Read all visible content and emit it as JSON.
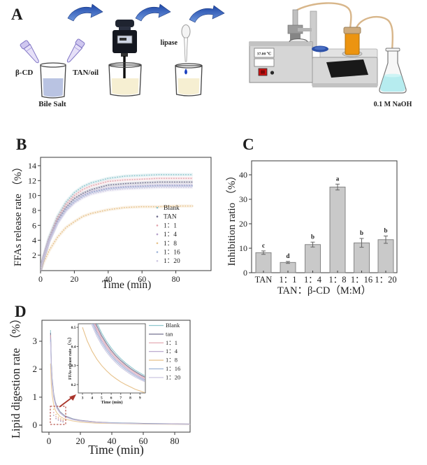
{
  "figure": {
    "panel_a": {
      "label": "A",
      "labels": {
        "beta_cd": "β-CD",
        "tan_oil": "TAN/oil",
        "bile_salt": "Bile Salt",
        "lipase": "lipase",
        "temperature": "37.00 ℃",
        "naoh": "0.1 M NaOH"
      }
    },
    "panel_b": {
      "label": "B"
    },
    "panel_c": {
      "label": "C"
    },
    "panel_d": {
      "label": "D"
    }
  },
  "palette": {
    "blank": "#8ec6cd",
    "tan_series": "#73718f",
    "r1_1": "#e2a3ab",
    "r1_4": "#b5a0ca",
    "r1_8": "#e7c28b",
    "r1_16": "#9db3d7",
    "r1_20": "#cdc7e2",
    "bar_fill": "#c9c9c9",
    "bar_stroke": "#7d7d7d",
    "axis": "#3a3a3a",
    "accent_red": "#a9352b",
    "display_red": "#d01010",
    "arrow_blue_dark": "#1d47a8",
    "arrow_blue_light": "#6f97dd"
  },
  "chart_data": [
    {
      "id": "panel_b",
      "type": "line",
      "line_style": "dotted-with-band",
      "xlabel": "Time (min)",
      "ylabel": "FFAs release rate （%）",
      "xlim": [
        0,
        100
      ],
      "ylim": [
        0,
        15.2
      ],
      "xticks": [
        0,
        20,
        40,
        60,
        80
      ],
      "yticks": [
        2,
        4,
        6,
        8,
        10,
        12,
        14
      ],
      "legend_position": "lower right",
      "x": [
        0,
        2,
        5,
        10,
        15,
        20,
        25,
        30,
        40,
        50,
        60,
        70,
        80,
        90
      ],
      "series": [
        {
          "name": "Blank",
          "color": "#8ec6cd",
          "values": [
            0,
            2.0,
            4.4,
            7.2,
            9.1,
            10.4,
            11.2,
            11.7,
            12.3,
            12.6,
            12.7,
            12.8,
            12.8,
            12.8
          ]
        },
        {
          "name": "TAN",
          "color": "#73718f",
          "values": [
            0,
            1.8,
            4.0,
            6.7,
            8.4,
            9.6,
            10.3,
            10.8,
            11.4,
            11.6,
            11.7,
            11.8,
            11.8,
            11.8
          ]
        },
        {
          "name": "1：1",
          "color": "#e2a3ab",
          "values": [
            0,
            1.9,
            4.2,
            7.0,
            8.8,
            10.0,
            10.8,
            11.3,
            11.9,
            12.1,
            12.2,
            12.3,
            12.3,
            12.3
          ]
        },
        {
          "name": "1：4",
          "color": "#b5a0ca",
          "values": [
            0,
            1.8,
            3.9,
            6.4,
            8.1,
            9.2,
            10.0,
            10.5,
            11.0,
            11.2,
            11.3,
            11.4,
            11.4,
            11.4
          ]
        },
        {
          "name": "1：8",
          "color": "#e7c28b",
          "values": [
            0,
            1.1,
            2.6,
            4.4,
            5.7,
            6.5,
            7.2,
            7.6,
            8.1,
            8.4,
            8.5,
            8.5,
            8.6,
            8.6
          ]
        },
        {
          "name": "1：16",
          "color": "#9db3d7",
          "values": [
            0,
            1.7,
            3.9,
            6.4,
            8.1,
            9.2,
            9.9,
            10.4,
            10.9,
            11.1,
            11.2,
            11.3,
            11.3,
            11.3
          ]
        },
        {
          "name": "1：20",
          "color": "#cdc7e2",
          "values": [
            0,
            1.7,
            3.8,
            6.3,
            7.9,
            9.0,
            9.7,
            10.2,
            10.7,
            10.9,
            11.0,
            11.1,
            11.1,
            11.1
          ]
        }
      ]
    },
    {
      "id": "panel_c",
      "type": "bar",
      "xlabel": "TAN：β-CD（M:M）",
      "ylabel": "Inhibition ratio （%）",
      "ylim": [
        0,
        45
      ],
      "yticks": [
        0,
        10,
        20,
        30,
        40
      ],
      "categories": [
        "TAN",
        "1：1",
        "1：4",
        "1：8",
        "1：16",
        "1：20"
      ],
      "values": [
        8.2,
        4.2,
        11.5,
        35.0,
        12.2,
        13.5
      ],
      "errors": [
        0.7,
        0.4,
        1.0,
        1.2,
        1.8,
        1.5
      ],
      "sig_letters": [
        "c",
        "d",
        "b",
        "a",
        "b",
        "b"
      ],
      "bar_color": "#c9c9c9"
    },
    {
      "id": "panel_d_main",
      "type": "line",
      "line_style": "solid",
      "xlabel": "Time (min)",
      "ylabel": "Lipid digestion rate （%）",
      "xlim": [
        0,
        94
      ],
      "ylim": [
        -0.25,
        3.75
      ],
      "xticks": [
        0,
        20,
        40,
        60,
        80
      ],
      "yticks": [
        0,
        1,
        2,
        3
      ],
      "x": [
        1,
        1.5,
        2,
        3,
        4,
        5,
        7,
        10,
        15,
        20,
        30,
        40,
        60,
        90
      ],
      "series": [
        {
          "name": "Blank",
          "color": "#8ec6cd",
          "values": [
            3.4,
            2.27,
            1.7,
            1.13,
            0.85,
            0.68,
            0.49,
            0.34,
            0.23,
            0.17,
            0.11,
            0.09,
            0.06,
            0.04
          ]
        },
        {
          "name": "tan",
          "color": "#73718f",
          "values": [
            3.3,
            2.2,
            1.65,
            1.1,
            0.83,
            0.66,
            0.47,
            0.33,
            0.22,
            0.17,
            0.11,
            0.08,
            0.06,
            0.04
          ]
        },
        {
          "name": "1：1",
          "color": "#e2a3ab",
          "values": [
            3.22,
            2.15,
            1.61,
            1.07,
            0.81,
            0.64,
            0.46,
            0.32,
            0.21,
            0.16,
            0.11,
            0.08,
            0.05,
            0.04
          ]
        },
        {
          "name": "1：4",
          "color": "#b5a0ca",
          "values": [
            3.14,
            2.09,
            1.57,
            1.05,
            0.79,
            0.63,
            0.45,
            0.31,
            0.21,
            0.16,
            0.1,
            0.08,
            0.05,
            0.03
          ]
        },
        {
          "name": "1：8",
          "color": "#e7c28b",
          "values": [
            2.2,
            1.47,
            1.1,
            0.73,
            0.55,
            0.44,
            0.31,
            0.22,
            0.15,
            0.11,
            0.07,
            0.06,
            0.04,
            0.02
          ]
        },
        {
          "name": "1：16",
          "color": "#9db3d7",
          "values": [
            3.06,
            2.04,
            1.53,
            1.02,
            0.77,
            0.61,
            0.44,
            0.31,
            0.2,
            0.15,
            0.1,
            0.08,
            0.05,
            0.03
          ]
        },
        {
          "name": "1：20",
          "color": "#cdc7e2",
          "values": [
            2.98,
            1.99,
            1.49,
            0.99,
            0.75,
            0.6,
            0.43,
            0.3,
            0.2,
            0.15,
            0.1,
            0.07,
            0.05,
            0.03
          ]
        }
      ]
    },
    {
      "id": "panel_d_inset",
      "type": "line",
      "line_style": "solid",
      "xlabel": "Time (min)",
      "ylabel": "FFAs release rate （%）",
      "xlim": [
        2.5,
        9.6
      ],
      "ylim": [
        0.15,
        0.52
      ],
      "xticks": [
        3,
        4,
        5,
        6,
        7,
        8,
        9
      ],
      "yticks": [
        0.2,
        0.3,
        0.4,
        0.5
      ],
      "legend_position": "right of inset",
      "x": [
        3,
        3.5,
        4,
        4.5,
        5,
        5.5,
        6,
        6.5,
        7,
        7.5,
        8,
        8.5,
        9,
        9.5
      ],
      "series": [
        {
          "name": "Blank",
          "color": "#8ec6cd",
          "values": [
            0.783,
            0.671,
            0.588,
            0.522,
            0.47,
            0.427,
            0.392,
            0.362,
            0.336,
            0.313,
            0.294,
            0.276,
            0.261,
            0.247
          ]
        },
        {
          "name": "tan",
          "color": "#73718f",
          "values": [
            0.76,
            0.651,
            0.57,
            0.507,
            0.456,
            0.415,
            0.38,
            0.351,
            0.326,
            0.304,
            0.285,
            0.268,
            0.253,
            0.24
          ]
        },
        {
          "name": "1：1",
          "color": "#e2a3ab",
          "values": [
            0.74,
            0.634,
            0.555,
            0.493,
            0.444,
            0.404,
            0.37,
            0.342,
            0.317,
            0.296,
            0.278,
            0.261,
            0.247,
            0.234
          ]
        },
        {
          "name": "1：4",
          "color": "#b5a0ca",
          "values": [
            0.72,
            0.617,
            0.54,
            0.48,
            0.432,
            0.393,
            0.36,
            0.332,
            0.309,
            0.288,
            0.27,
            0.254,
            0.24,
            0.227
          ]
        },
        {
          "name": "1：8",
          "color": "#e7c28b",
          "values": [
            0.5,
            0.429,
            0.375,
            0.333,
            0.3,
            0.273,
            0.25,
            0.231,
            0.214,
            0.2,
            0.188,
            0.176,
            0.167,
            0.158
          ]
        },
        {
          "name": "1：16",
          "color": "#9db3d7",
          "values": [
            0.7,
            0.6,
            0.525,
            0.467,
            0.42,
            0.382,
            0.35,
            0.323,
            0.3,
            0.28,
            0.263,
            0.247,
            0.233,
            0.221
          ]
        },
        {
          "name": "1：20",
          "color": "#cdc7e2",
          "values": [
            0.68,
            0.583,
            0.51,
            0.453,
            0.408,
            0.371,
            0.34,
            0.314,
            0.291,
            0.272,
            0.255,
            0.24,
            0.227,
            0.215
          ]
        }
      ]
    }
  ]
}
